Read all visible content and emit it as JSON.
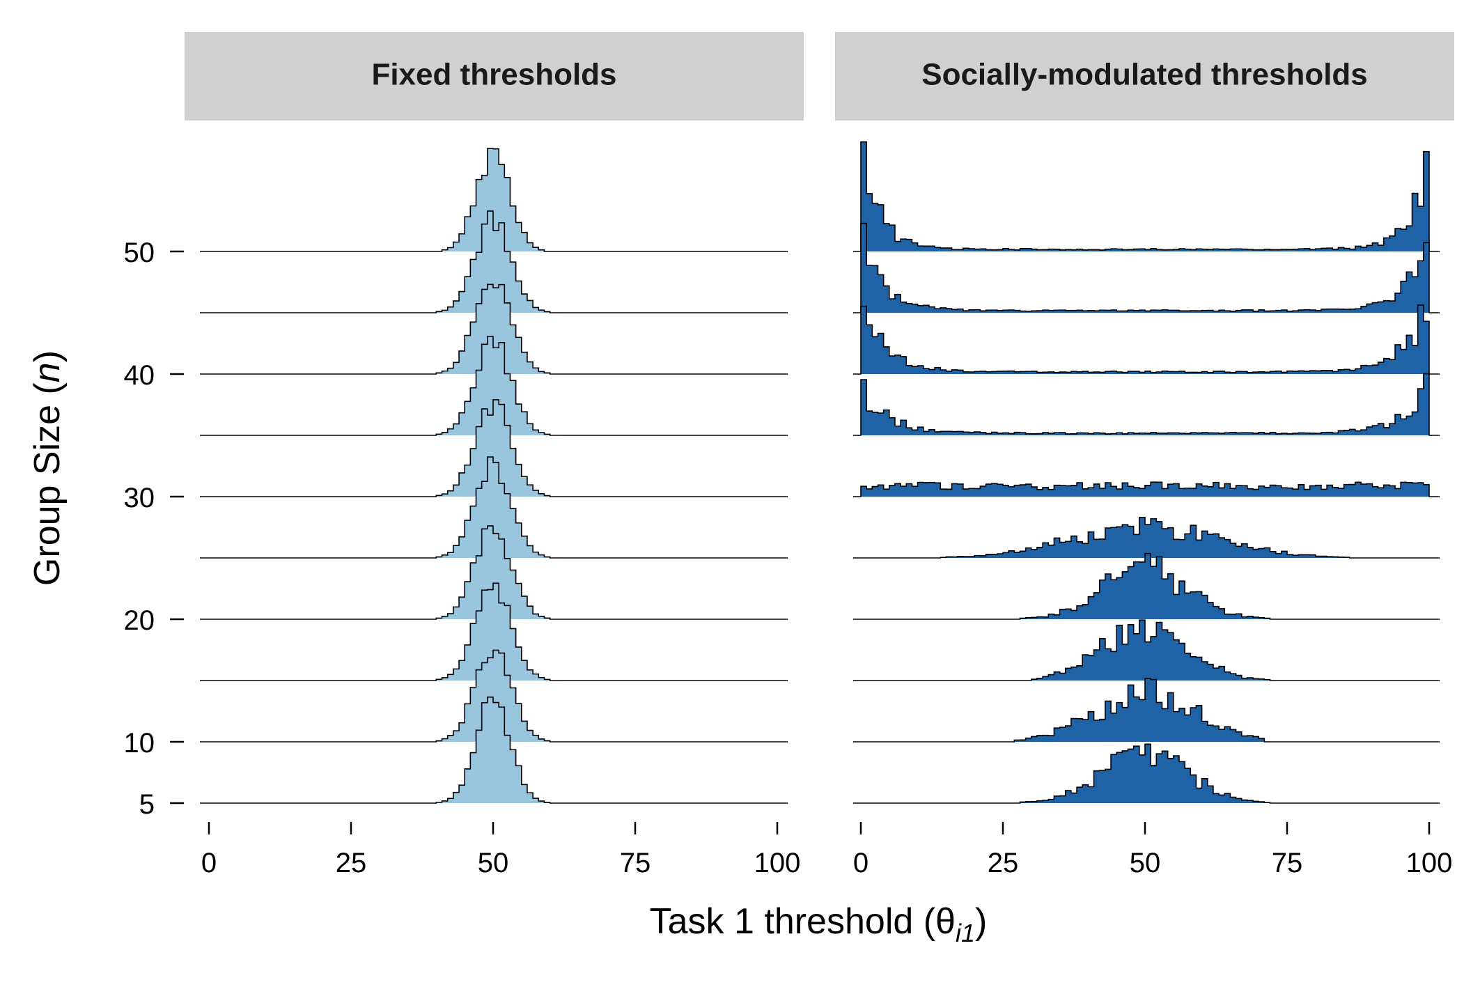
{
  "chart_data": {
    "type": "ridgeline-histogram",
    "xlabel": "Task 1 threshold (θ",
    "xlabel_sub": "i1",
    "xlabel_close": ")",
    "ylabel": "Group Size (",
    "ylabel_italic": "n",
    "ylabel_close": ")",
    "xlim": [
      0,
      100
    ],
    "x_ticks": [
      0,
      25,
      50,
      75,
      100
    ],
    "y_ticks": [
      5,
      10,
      20,
      30,
      40,
      50
    ],
    "group_sizes": [
      5,
      10,
      15,
      20,
      25,
      30,
      35,
      40,
      45,
      50
    ],
    "colors": {
      "fixed": "#9ac5de",
      "social": "#1f63a6",
      "outline": "#000000",
      "strip_bg": "#d0d0d0"
    },
    "panels": [
      {
        "title": "Fixed thresholds",
        "color_key": "fixed",
        "series": [
          {
            "n": 5,
            "shape": "normal",
            "center": 50,
            "sd": 3.0,
            "peak": 0.98
          },
          {
            "n": 10,
            "shape": "normal",
            "center": 50,
            "sd": 3.2,
            "peak": 0.86
          },
          {
            "n": 15,
            "shape": "normal",
            "center": 50,
            "sd": 3.2,
            "peak": 0.86
          },
          {
            "n": 20,
            "shape": "normal",
            "center": 50,
            "sd": 3.2,
            "peak": 0.86
          },
          {
            "n": 25,
            "shape": "normal",
            "center": 50,
            "sd": 3.2,
            "peak": 0.86
          },
          {
            "n": 30,
            "shape": "normal",
            "center": 50,
            "sd": 3.2,
            "peak": 0.86
          },
          {
            "n": 35,
            "shape": "normal",
            "center": 50,
            "sd": 3.2,
            "peak": 0.86
          },
          {
            "n": 40,
            "shape": "normal",
            "center": 50,
            "sd": 3.2,
            "peak": 0.86
          },
          {
            "n": 45,
            "shape": "normal",
            "center": 50,
            "sd": 3.2,
            "peak": 0.86
          },
          {
            "n": 50,
            "shape": "normal",
            "center": 50,
            "sd": 3.0,
            "peak": 0.9
          }
        ]
      },
      {
        "title": "Socially-modulated thresholds",
        "color_key": "social",
        "series": [
          {
            "n": 5,
            "shape": "normal",
            "center": 50,
            "sd": 7.5,
            "peak": 0.46,
            "xmin": 27,
            "xmax": 78
          },
          {
            "n": 10,
            "shape": "normal",
            "center": 50,
            "sd": 9.0,
            "peak": 0.44,
            "xmin": 27,
            "xmax": 71
          },
          {
            "n": 15,
            "shape": "normal",
            "center": 50,
            "sd": 7.5,
            "peak": 0.5,
            "xmin": 30,
            "xmax": 75
          },
          {
            "n": 20,
            "shape": "normal",
            "center": 50,
            "sd": 7.5,
            "peak": 0.46,
            "xmin": 23,
            "xmax": 79
          },
          {
            "n": 25,
            "shape": "normal",
            "center": 50,
            "sd": 13.0,
            "peak": 0.28,
            "xmin": 0,
            "xmax": 100
          },
          {
            "n": 30,
            "shape": "flat",
            "level": 0.1
          },
          {
            "n": 35,
            "shape": "ushape",
            "edge": 0.45,
            "decay": 4.5,
            "floor": 0.02
          },
          {
            "n": 40,
            "shape": "ushape",
            "edge": 0.72,
            "decay": 4.0,
            "floor": 0.02
          },
          {
            "n": 45,
            "shape": "ushape",
            "edge": 0.8,
            "decay": 3.6,
            "floor": 0.02
          },
          {
            "n": 50,
            "shape": "ushape",
            "edge": 0.9,
            "decay": 3.2,
            "floor": 0.02
          }
        ]
      }
    ]
  }
}
